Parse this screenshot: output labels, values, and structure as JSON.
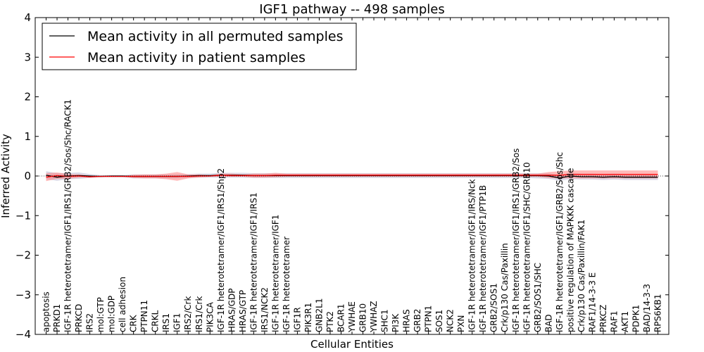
{
  "chart_data": {
    "type": "line",
    "title": "IGF1 pathway -- 498 samples",
    "xlabel": "Cellular Entities",
    "ylabel": "Inferred Activity",
    "ylim": [
      -4,
      4
    ],
    "yticks": [
      -4,
      -3,
      -2,
      -1,
      0,
      1,
      2,
      3,
      4
    ],
    "ytick_labels": [
      "−4",
      "−3",
      "−2",
      "−1",
      "0",
      "1",
      "2",
      "3",
      "4"
    ],
    "legend_position": "top-left",
    "categories": [
      "apoptosis",
      "PRKD1",
      "IGF-1R heterotetramer/IGF1/IRS1/GRB2/Sos/Shc/RACK1",
      "PRKCD",
      "IRS2",
      "mol:GTP",
      "mol:GDP",
      "cell adhesion",
      "CRK",
      "PTPN11",
      "CRKL",
      "IRS1",
      "IGF1",
      "IRS2/Crk",
      "IRS1/Crk",
      "PIK3CA",
      "IGF-1R heterotetramer/IGF1/IRS1/Shp2",
      "HRAS/GDP",
      "HRAS/GTP",
      "IGF-1R heterotetramer/IGF1/IRS1",
      "IRS1/NCK2",
      "IGF-1R heterotetramer/IGF1",
      "IGF-1R heterotetramer",
      "IGF1R",
      "PIK3R1",
      "GNB2L1",
      "PTK2",
      "BCAR1",
      "YWHAE",
      "GRB10",
      "YWHAZ",
      "SHC1",
      "PI3K",
      "HRAS",
      "GRB2",
      "PTPN1",
      "SOS1",
      "NCK2",
      "PXN",
      "IGF-1R heterotetramer/IGF1/IRS/Nck",
      "IGF-1R heterotetramer/IGF1/PTP1B",
      "GRB2/SOS1",
      "Crk/p130 Cas/Paxillin",
      "IGF-1R heterotetramer/IGF1/IRS1/GRB2/Sos",
      "IGF-1R heterotetramer/IGF1/SHC/GRB10",
      "GRB2/SOS1/SHC",
      "BAD",
      "IGF-1R heterotetramer/IGF1/GRB2/Sos/Shc",
      "positive regulation of MAPKKK cascade",
      "Crk/p130 Cas/Paxillin/FAK1",
      "RAF1/14-3-3 E",
      "PRKCZ",
      "RAF1",
      "AKT1",
      "PDPK1",
      "BAD/14-3-3",
      "RPS6KB1"
    ],
    "series": [
      {
        "name": "Mean activity in all permuted samples",
        "color": "#000000",
        "band_color": "#c8c8dc",
        "values": [
          0.02,
          -0.03,
          0.0,
          0.01,
          0.0,
          -0.01,
          0.0,
          0.0,
          -0.01,
          -0.01,
          -0.01,
          -0.01,
          -0.01,
          0.0,
          0.01,
          0.01,
          0.02,
          0.02,
          0.02,
          0.01,
          0.01,
          0.01,
          0.01,
          0.01,
          0.01,
          0.01,
          0.01,
          0.01,
          0.01,
          0.01,
          0.01,
          0.01,
          0.01,
          0.01,
          0.01,
          0.01,
          0.01,
          0.01,
          0.01,
          0.01,
          0.01,
          0.01,
          0.01,
          0.01,
          0.01,
          0.01,
          0.0,
          -0.05,
          0.0,
          -0.02,
          -0.02,
          -0.03,
          -0.02,
          -0.03,
          -0.03,
          -0.03,
          -0.03
        ],
        "band_lower": [
          -0.08,
          -0.12,
          -0.08,
          -0.07,
          -0.05,
          -0.03,
          -0.03,
          -0.03,
          -0.06,
          -0.06,
          -0.06,
          -0.06,
          -0.06,
          -0.05,
          -0.04,
          -0.04,
          -0.04,
          -0.04,
          -0.04,
          -0.05,
          -0.05,
          -0.05,
          -0.05,
          -0.05,
          -0.05,
          -0.05,
          -0.05,
          -0.05,
          -0.05,
          -0.05,
          -0.05,
          -0.05,
          -0.05,
          -0.05,
          -0.05,
          -0.05,
          -0.05,
          -0.05,
          -0.05,
          -0.05,
          -0.05,
          -0.05,
          -0.05,
          -0.05,
          -0.05,
          -0.06,
          -0.07,
          -0.12,
          -0.08,
          -0.09,
          -0.09,
          -0.1,
          -0.09,
          -0.1,
          -0.1,
          -0.1,
          -0.1
        ],
        "band_upper": [
          0.12,
          0.07,
          0.08,
          0.09,
          0.05,
          0.02,
          0.02,
          0.02,
          0.04,
          0.04,
          0.04,
          0.04,
          0.04,
          0.05,
          0.06,
          0.06,
          0.08,
          0.08,
          0.08,
          0.07,
          0.07,
          0.07,
          0.07,
          0.07,
          0.07,
          0.07,
          0.07,
          0.07,
          0.07,
          0.07,
          0.07,
          0.07,
          0.07,
          0.07,
          0.07,
          0.07,
          0.07,
          0.07,
          0.07,
          0.07,
          0.07,
          0.07,
          0.07,
          0.07,
          0.07,
          0.07,
          0.07,
          0.02,
          0.08,
          0.06,
          0.06,
          0.05,
          0.06,
          0.05,
          0.05,
          0.05,
          0.05
        ]
      },
      {
        "name": "Mean activity in patient samples",
        "color": "#ff0000",
        "band_color": "#ff8080",
        "values": [
          -0.03,
          0.01,
          -0.01,
          0.0,
          -0.02,
          -0.01,
          -0.01,
          -0.01,
          -0.01,
          -0.01,
          -0.01,
          -0.01,
          -0.01,
          -0.01,
          0.0,
          0.0,
          0.02,
          0.01,
          0.01,
          0.01,
          0.01,
          0.02,
          0.02,
          0.02,
          0.02,
          0.02,
          0.02,
          0.02,
          0.02,
          0.02,
          0.02,
          0.02,
          0.02,
          0.02,
          0.02,
          0.02,
          0.02,
          0.02,
          0.02,
          0.02,
          0.02,
          0.02,
          0.02,
          0.02,
          0.02,
          0.02,
          0.02,
          0.02,
          0.04,
          0.04,
          0.04,
          0.04,
          0.04,
          0.04,
          0.04,
          0.04,
          0.04
        ],
        "band_lower": [
          -0.13,
          -0.07,
          -0.07,
          -0.04,
          -0.04,
          -0.02,
          -0.02,
          -0.02,
          -0.05,
          -0.06,
          -0.06,
          -0.08,
          -0.12,
          -0.06,
          -0.04,
          -0.02,
          -0.02,
          -0.02,
          -0.02,
          -0.04,
          -0.04,
          -0.03,
          -0.02,
          -0.02,
          -0.02,
          -0.02,
          -0.02,
          -0.02,
          -0.02,
          -0.02,
          -0.02,
          -0.02,
          -0.02,
          -0.02,
          -0.02,
          -0.02,
          -0.02,
          -0.02,
          -0.02,
          -0.02,
          -0.02,
          -0.02,
          -0.02,
          -0.02,
          -0.02,
          -0.02,
          -0.05,
          -0.06,
          -0.06,
          -0.06,
          -0.06,
          -0.06,
          -0.06,
          -0.06,
          -0.06,
          -0.06,
          -0.06
        ],
        "band_upper": [
          0.07,
          0.09,
          0.05,
          0.04,
          0.01,
          0.0,
          0.0,
          0.0,
          0.03,
          0.04,
          0.04,
          0.06,
          0.1,
          0.04,
          0.04,
          0.02,
          0.06,
          0.06,
          0.04,
          0.06,
          0.06,
          0.08,
          0.06,
          0.06,
          0.06,
          0.06,
          0.06,
          0.06,
          0.06,
          0.06,
          0.06,
          0.06,
          0.06,
          0.06,
          0.06,
          0.06,
          0.06,
          0.06,
          0.06,
          0.06,
          0.06,
          0.06,
          0.06,
          0.06,
          0.06,
          0.06,
          0.1,
          0.12,
          0.14,
          0.14,
          0.14,
          0.14,
          0.14,
          0.14,
          0.14,
          0.14,
          0.14
        ]
      }
    ]
  }
}
